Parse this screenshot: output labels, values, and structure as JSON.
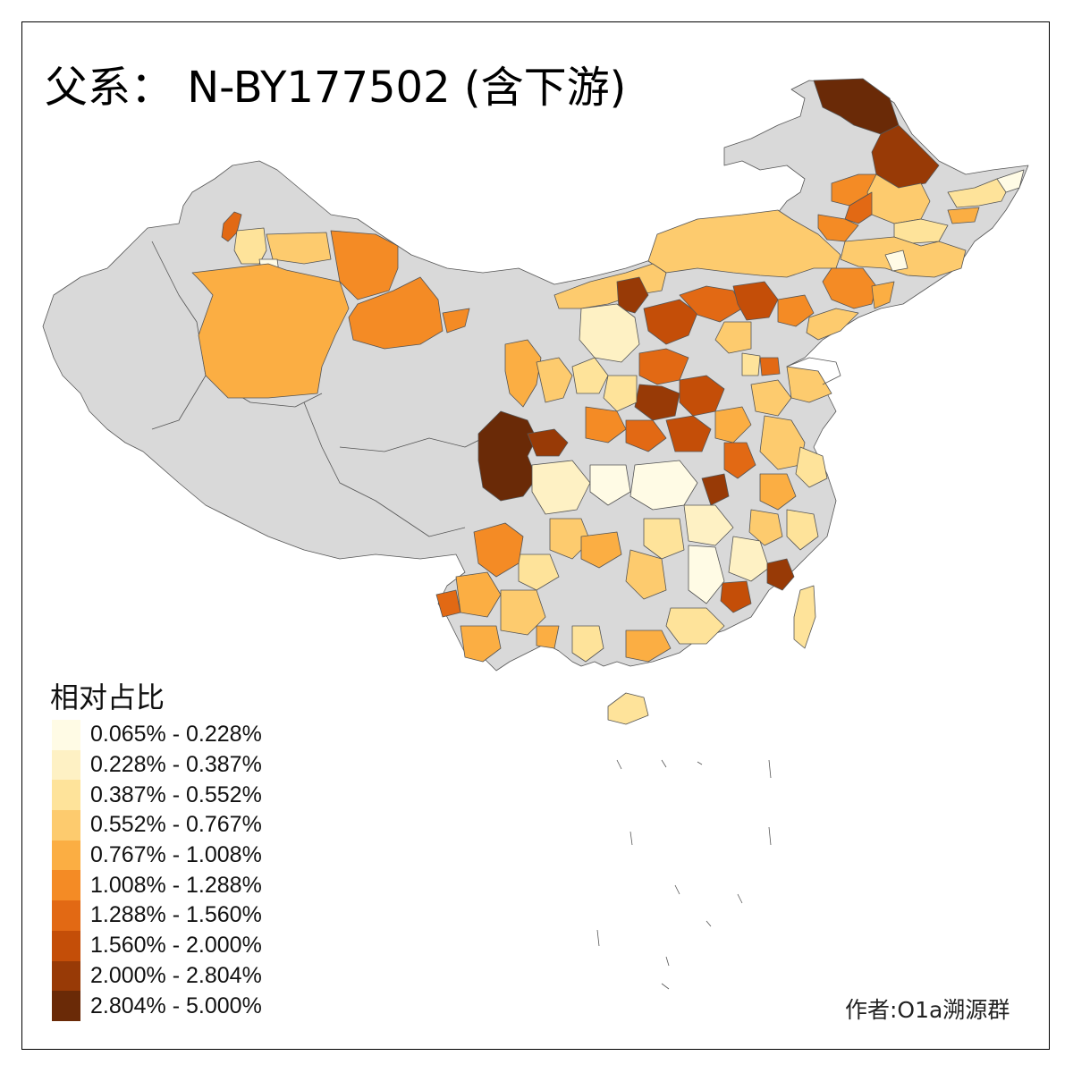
{
  "title": "父系： N-BY177502 (含下游)",
  "legend": {
    "title": "相对占比",
    "bins": [
      {
        "label": "0.065% - 0.228%",
        "color": "#FFFBE5"
      },
      {
        "label": "0.228% - 0.387%",
        "color": "#FEF1C4"
      },
      {
        "label": "0.387% - 0.552%",
        "color": "#FEE39A"
      },
      {
        "label": "0.552% - 0.767%",
        "color": "#FDCB6E"
      },
      {
        "label": "0.767% - 1.008%",
        "color": "#FBAE43"
      },
      {
        "label": "1.008% - 1.288%",
        "color": "#F48B25"
      },
      {
        "label": "1.288% - 1.560%",
        "color": "#E26914"
      },
      {
        "label": "1.560% - 2.000%",
        "color": "#C44E08"
      },
      {
        "label": "2.000% - 2.804%",
        "color": "#983A06"
      },
      {
        "label": "2.804% - 5.000%",
        "color": "#6A2A07"
      }
    ]
  },
  "credit": "作者:O1a溯源群",
  "map": {
    "no_data_color": "#D9D9D9",
    "border_color": "#555555"
  }
}
